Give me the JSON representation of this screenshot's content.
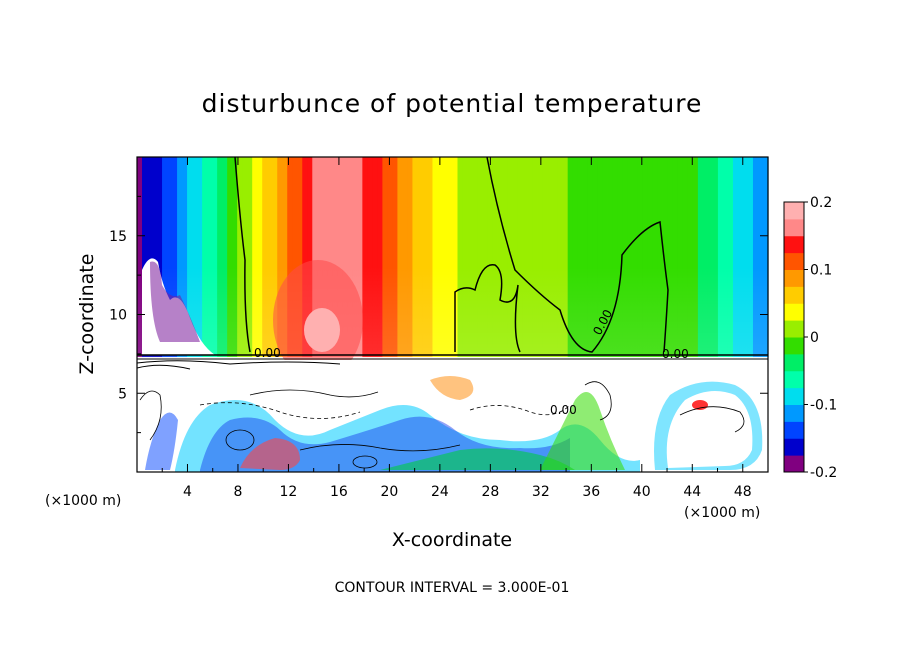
{
  "chart_data": {
    "type": "heatmap",
    "title": "disturbunce of potential temperature",
    "xlabel": "X-coordinate",
    "ylabel": "Z-coordinate",
    "x_unit": "(×1000 m)",
    "y_unit": "(×1000 m)",
    "xlim": [
      0,
      50
    ],
    "ylim": [
      0,
      20
    ],
    "x_ticks": [
      "4",
      "8",
      "12",
      "16",
      "20",
      "24",
      "28",
      "32",
      "36",
      "40",
      "44",
      "48"
    ],
    "y_ticks": [
      "5",
      "10",
      "15"
    ],
    "colorbar": {
      "range": [
        -0.2,
        0.2
      ],
      "tick_labels": [
        "0.2",
        "0.1",
        "0",
        "-0.1",
        "-0.2"
      ],
      "colors": [
        "#800080",
        "#0000cc",
        "#0044ff",
        "#0099ff",
        "#00ddee",
        "#00ffaa",
        "#00ee66",
        "#33dd00",
        "#99ee00",
        "#ffff00",
        "#ffcc00",
        "#ff9900",
        "#ff5500",
        "#ff1111",
        "#ff8888",
        "#ffb0b0"
      ]
    },
    "contour_labels": [
      "0.00",
      "0.00",
      "0.00",
      "0.00"
    ],
    "upper_layer_profile": {
      "x": [
        0,
        2,
        4,
        6,
        8,
        10,
        12,
        14,
        16,
        18,
        20,
        22,
        24,
        26,
        28,
        30,
        32,
        34,
        36,
        38,
        40,
        42,
        44,
        46,
        48,
        50
      ],
      "values": [
        -0.18,
        -0.15,
        -0.1,
        -0.06,
        0.0,
        0.05,
        0.1,
        0.15,
        0.17,
        0.15,
        0.11,
        0.07,
        0.04,
        0.02,
        0.01,
        0.01,
        0.0,
        0.0,
        -0.01,
        -0.01,
        -0.01,
        -0.01,
        -0.02,
        -0.05,
        -0.09,
        -0.12
      ]
    },
    "interface_height": 7.3,
    "footnote": "CONTOUR INTERVAL = 3.000E-01"
  }
}
